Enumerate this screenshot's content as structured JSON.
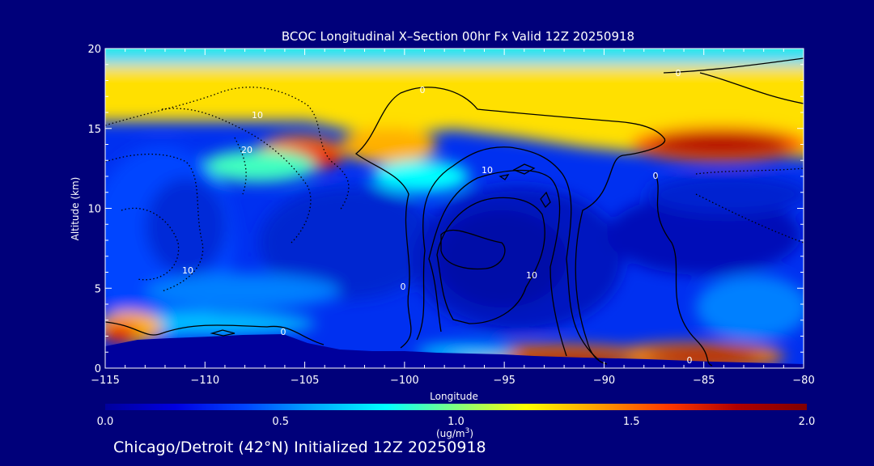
{
  "chart_data": {
    "type": "heatmap",
    "title": "BCOC Longitudinal X–Section 00hr  Fx Valid 12Z 20250918",
    "xlabel": "Longitude",
    "ylabel": "Altitude (km)",
    "xlim": [
      -115,
      -80
    ],
    "ylim": [
      0,
      20
    ],
    "x_ticks": [
      -115,
      -110,
      -105,
      -100,
      -95,
      -90,
      -85,
      -80
    ],
    "x_tick_labels": [
      "−115",
      "−110",
      "−105",
      "−100",
      "−95",
      "−90",
      "−85",
      "−80"
    ],
    "y_ticks": [
      0,
      5,
      10,
      15,
      20
    ],
    "y_tick_labels": [
      "0",
      "5",
      "10",
      "15",
      "20"
    ],
    "colorbar": {
      "min": 0.0,
      "max": 2.0,
      "tick_values": [
        0.0,
        0.5,
        1.0,
        1.5,
        2.0
      ],
      "tick_labels": [
        "0.0",
        "0.5",
        "1.0",
        "1.5",
        "2.0"
      ],
      "units": "(ug/m",
      "units_superscript": "3",
      "units_close": ")",
      "colors": [
        "#00009c",
        "#0000e0",
        "#0045ff",
        "#00aaff",
        "#00ffff",
        "#80ff80",
        "#ffff00",
        "#ffa000",
        "#ff3a00",
        "#b00000",
        "#800000"
      ]
    },
    "contour_labels": [
      "0",
      "10",
      "20",
      "0",
      "10",
      "0",
      "0",
      "10",
      "0",
      "10",
      "0"
    ],
    "footer": "Chicago/Detroit (42°N) Initialized 12Z 20250918"
  }
}
